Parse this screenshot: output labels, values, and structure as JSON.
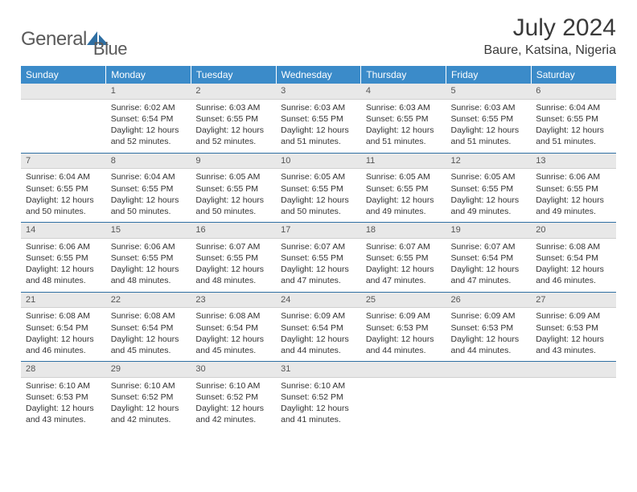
{
  "brand": {
    "text1": "General",
    "text2": "Blue"
  },
  "title": "July 2024",
  "location": "Baure, Katsina, Nigeria",
  "colors": {
    "header_bg": "#3b8bc9",
    "header_text": "#ffffff",
    "daynum_bg": "#e8e8e8",
    "week_border": "#2f6fa3",
    "logo_blue": "#2f6fa3"
  },
  "fonts": {
    "title_size": 30,
    "location_size": 16,
    "th_size": 12,
    "cell_size": 10.5
  },
  "day_headers": [
    "Sunday",
    "Monday",
    "Tuesday",
    "Wednesday",
    "Thursday",
    "Friday",
    "Saturday"
  ],
  "weeks": [
    [
      null,
      {
        "n": "1",
        "sr": "6:02 AM",
        "ss": "6:54 PM",
        "dl": "12 hours and 52 minutes."
      },
      {
        "n": "2",
        "sr": "6:03 AM",
        "ss": "6:55 PM",
        "dl": "12 hours and 52 minutes."
      },
      {
        "n": "3",
        "sr": "6:03 AM",
        "ss": "6:55 PM",
        "dl": "12 hours and 51 minutes."
      },
      {
        "n": "4",
        "sr": "6:03 AM",
        "ss": "6:55 PM",
        "dl": "12 hours and 51 minutes."
      },
      {
        "n": "5",
        "sr": "6:03 AM",
        "ss": "6:55 PM",
        "dl": "12 hours and 51 minutes."
      },
      {
        "n": "6",
        "sr": "6:04 AM",
        "ss": "6:55 PM",
        "dl": "12 hours and 51 minutes."
      }
    ],
    [
      {
        "n": "7",
        "sr": "6:04 AM",
        "ss": "6:55 PM",
        "dl": "12 hours and 50 minutes."
      },
      {
        "n": "8",
        "sr": "6:04 AM",
        "ss": "6:55 PM",
        "dl": "12 hours and 50 minutes."
      },
      {
        "n": "9",
        "sr": "6:05 AM",
        "ss": "6:55 PM",
        "dl": "12 hours and 50 minutes."
      },
      {
        "n": "10",
        "sr": "6:05 AM",
        "ss": "6:55 PM",
        "dl": "12 hours and 50 minutes."
      },
      {
        "n": "11",
        "sr": "6:05 AM",
        "ss": "6:55 PM",
        "dl": "12 hours and 49 minutes."
      },
      {
        "n": "12",
        "sr": "6:05 AM",
        "ss": "6:55 PM",
        "dl": "12 hours and 49 minutes."
      },
      {
        "n": "13",
        "sr": "6:06 AM",
        "ss": "6:55 PM",
        "dl": "12 hours and 49 minutes."
      }
    ],
    [
      {
        "n": "14",
        "sr": "6:06 AM",
        "ss": "6:55 PM",
        "dl": "12 hours and 48 minutes."
      },
      {
        "n": "15",
        "sr": "6:06 AM",
        "ss": "6:55 PM",
        "dl": "12 hours and 48 minutes."
      },
      {
        "n": "16",
        "sr": "6:07 AM",
        "ss": "6:55 PM",
        "dl": "12 hours and 48 minutes."
      },
      {
        "n": "17",
        "sr": "6:07 AM",
        "ss": "6:55 PM",
        "dl": "12 hours and 47 minutes."
      },
      {
        "n": "18",
        "sr": "6:07 AM",
        "ss": "6:55 PM",
        "dl": "12 hours and 47 minutes."
      },
      {
        "n": "19",
        "sr": "6:07 AM",
        "ss": "6:54 PM",
        "dl": "12 hours and 47 minutes."
      },
      {
        "n": "20",
        "sr": "6:08 AM",
        "ss": "6:54 PM",
        "dl": "12 hours and 46 minutes."
      }
    ],
    [
      {
        "n": "21",
        "sr": "6:08 AM",
        "ss": "6:54 PM",
        "dl": "12 hours and 46 minutes."
      },
      {
        "n": "22",
        "sr": "6:08 AM",
        "ss": "6:54 PM",
        "dl": "12 hours and 45 minutes."
      },
      {
        "n": "23",
        "sr": "6:08 AM",
        "ss": "6:54 PM",
        "dl": "12 hours and 45 minutes."
      },
      {
        "n": "24",
        "sr": "6:09 AM",
        "ss": "6:54 PM",
        "dl": "12 hours and 44 minutes."
      },
      {
        "n": "25",
        "sr": "6:09 AM",
        "ss": "6:53 PM",
        "dl": "12 hours and 44 minutes."
      },
      {
        "n": "26",
        "sr": "6:09 AM",
        "ss": "6:53 PM",
        "dl": "12 hours and 44 minutes."
      },
      {
        "n": "27",
        "sr": "6:09 AM",
        "ss": "6:53 PM",
        "dl": "12 hours and 43 minutes."
      }
    ],
    [
      {
        "n": "28",
        "sr": "6:10 AM",
        "ss": "6:53 PM",
        "dl": "12 hours and 43 minutes."
      },
      {
        "n": "29",
        "sr": "6:10 AM",
        "ss": "6:52 PM",
        "dl": "12 hours and 42 minutes."
      },
      {
        "n": "30",
        "sr": "6:10 AM",
        "ss": "6:52 PM",
        "dl": "12 hours and 42 minutes."
      },
      {
        "n": "31",
        "sr": "6:10 AM",
        "ss": "6:52 PM",
        "dl": "12 hours and 41 minutes."
      },
      null,
      null,
      null
    ]
  ],
  "labels": {
    "sunrise": "Sunrise:",
    "sunset": "Sunset:",
    "daylight": "Daylight:"
  }
}
